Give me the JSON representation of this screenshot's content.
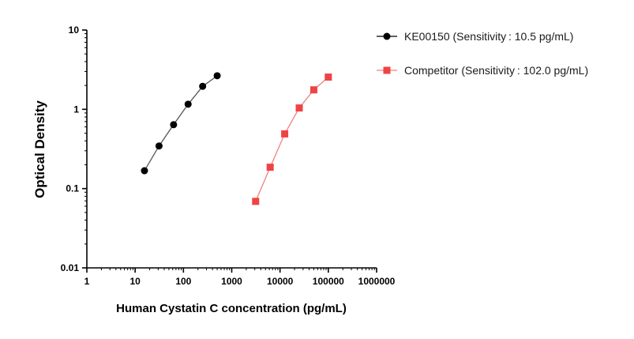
{
  "chart_data": {
    "type": "scatter",
    "xlabel": "Human Cystatin C concentration (pg/mL)",
    "ylabel": "Optical Density",
    "x_scale": "log",
    "y_scale": "log",
    "xlim": [
      1,
      1000000
    ],
    "ylim": [
      0.01,
      10
    ],
    "x_ticks": [
      "1",
      "10",
      "100",
      "1000",
      "10000",
      "100000",
      "1000000"
    ],
    "y_ticks": [
      "0.01",
      "0.1",
      "1",
      "10"
    ],
    "grid": false,
    "legend_position": "top-right",
    "series": [
      {
        "name": "KE00150 (Sensitivity : 10.5 pg/mL)",
        "color": "#000000",
        "line_color": "#555555",
        "marker": "circle",
        "x": [
          15.6,
          31.25,
          62.5,
          125,
          250,
          500
        ],
        "y": [
          0.168,
          0.345,
          0.64,
          1.16,
          1.95,
          2.65
        ]
      },
      {
        "name": "Competitor (Sensitivity : 102.0 pg/mL)",
        "color": "#ee4444",
        "line_color": "#f08080",
        "marker": "square",
        "x": [
          3125,
          6250,
          12500,
          25000,
          50000,
          100000
        ],
        "y": [
          0.069,
          0.186,
          0.49,
          1.04,
          1.76,
          2.55
        ]
      }
    ]
  }
}
